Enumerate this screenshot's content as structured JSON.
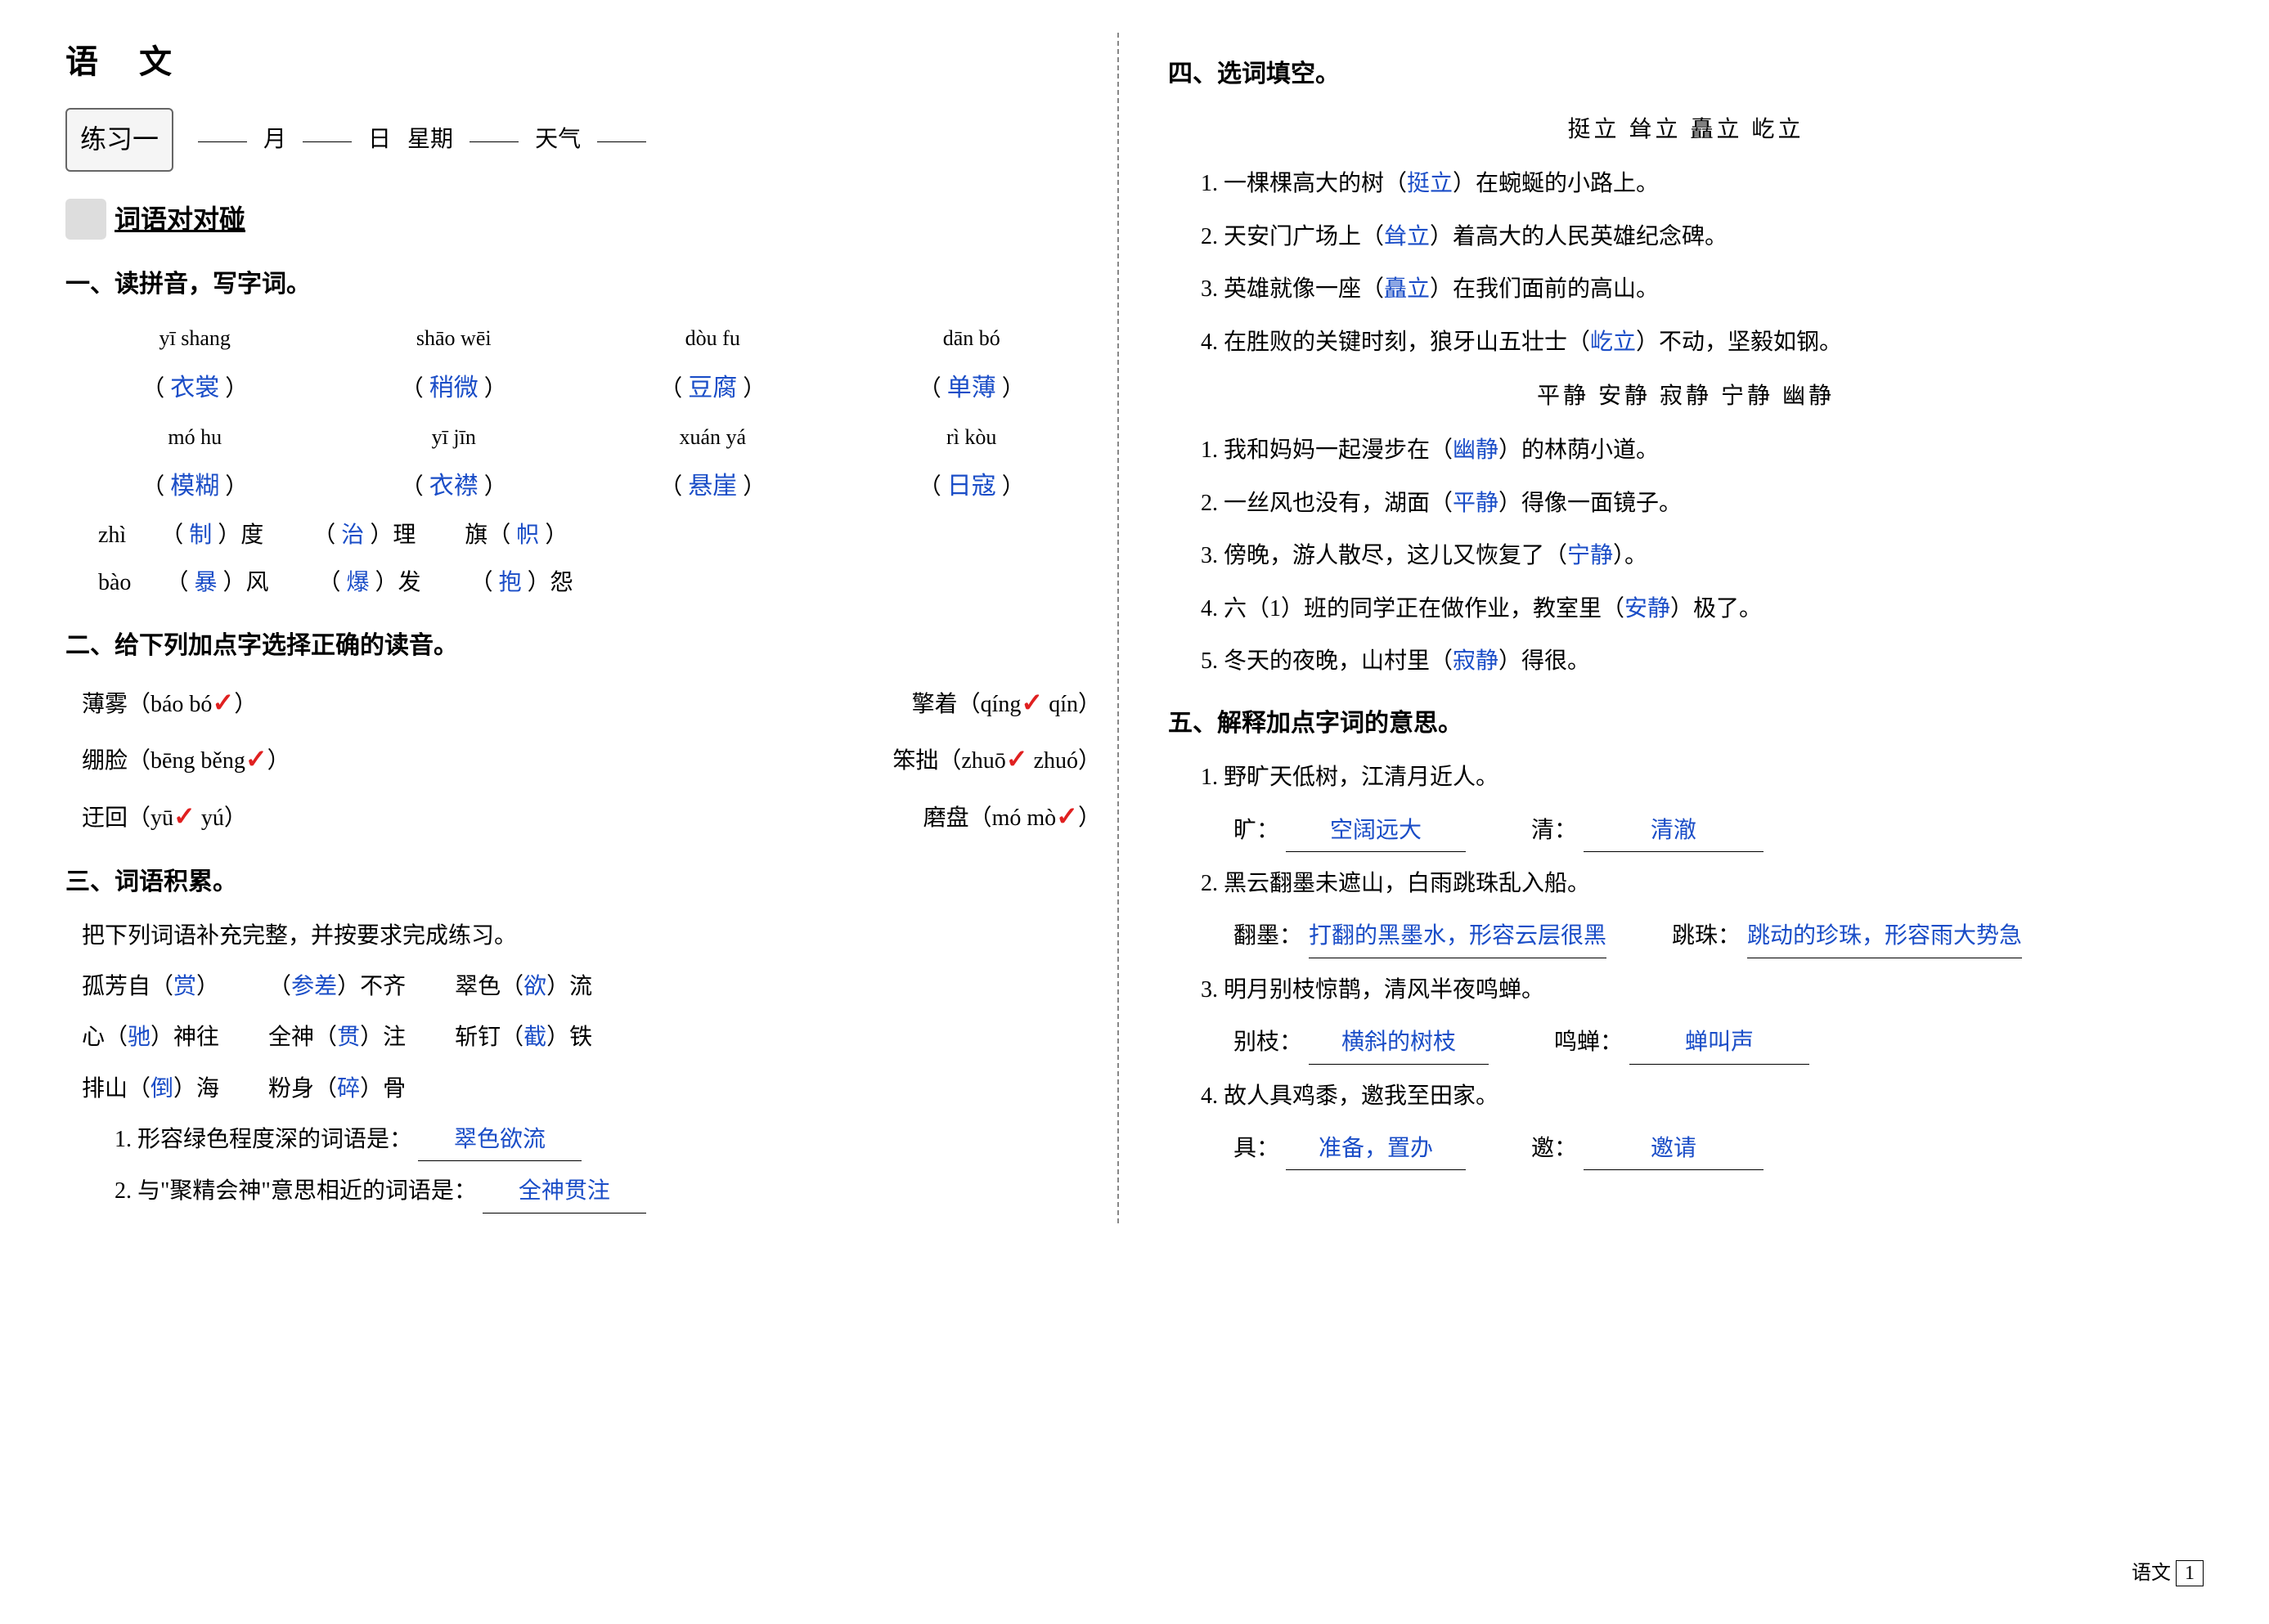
{
  "subject_title": "语 文",
  "practice_label": "练习一",
  "date": {
    "month_label": "月",
    "day_label": "日",
    "weekday_label": "星期",
    "weather_label": "天气"
  },
  "section_icon_title": "词语对对碰",
  "sec1": {
    "title": "一、读拼音，写字词。",
    "row1": {
      "p": [
        "yī shang",
        "shāo wēi",
        "dòu fu",
        "dān bó"
      ],
      "w": [
        "衣裳",
        "稍微",
        "豆腐",
        "单薄"
      ]
    },
    "row2": {
      "p": [
        "mó hu",
        "yī jīn",
        "xuán yá",
        "rì kòu"
      ],
      "w": [
        "模糊",
        "衣襟",
        "悬崖",
        "日寇"
      ]
    },
    "row3": [
      {
        "pinyin": "zhì",
        "ans": "制",
        "suffix": "度"
      },
      {
        "pinyin": "",
        "ans": "治",
        "suffix": "理"
      },
      {
        "pinyin": "",
        "prefix": "旗",
        "ans": "帜"
      }
    ],
    "row4": [
      {
        "pinyin": "bào",
        "ans": "暴",
        "suffix": "风"
      },
      {
        "pinyin": "",
        "ans": "爆",
        "suffix": "发"
      },
      {
        "pinyin": "",
        "ans": "抱",
        "suffix": "怨"
      }
    ]
  },
  "sec2": {
    "title": "二、给下列加点字选择正确的读音。",
    "items": [
      {
        "left_word": "薄雾",
        "left_opts": "（báo  bó）",
        "left_check": 2,
        "right_word": "擎着",
        "right_opts": "（qíng  qín）",
        "right_check": 1
      },
      {
        "left_word": "绷脸",
        "left_opts": "（bēng  běng）",
        "left_check": 2,
        "right_word": "笨拙",
        "right_opts": "（zhuō  zhuó）",
        "right_check": 1
      },
      {
        "left_word": "迂回",
        "left_opts": "（yū  yú）",
        "left_check": 1,
        "right_word": "磨盘",
        "right_opts": "（mó  mò）",
        "right_check": 2
      }
    ]
  },
  "sec3": {
    "title": "三、词语积累。",
    "instruction": "把下列词语补充完整，并按要求完成练习。",
    "lines": [
      [
        {
          "pre": "孤芳自（",
          "ans": "赏",
          "post": "）"
        },
        {
          "pre": "（",
          "ans": "参差",
          "post": "）不齐"
        },
        {
          "pre": "翠色（",
          "ans": "欲",
          "post": "）流"
        }
      ],
      [
        {
          "pre": "心（",
          "ans": "驰",
          "post": "）神往"
        },
        {
          "pre": "全神（",
          "ans": "贯",
          "post": "）注"
        },
        {
          "pre": "斩钉（",
          "ans": "截",
          "post": "）铁"
        }
      ],
      [
        {
          "pre": "排山（",
          "ans": "倒",
          "post": "）海"
        },
        {
          "pre": "粉身（",
          "ans": "碎",
          "post": "）骨"
        }
      ]
    ],
    "q1_label": "1. 形容绿色程度深的词语是：",
    "q1_ans": "翠色欲流",
    "q2_label": "2. 与\"聚精会神\"意思相近的词语是：",
    "q2_ans": "全神贯注"
  },
  "sec4": {
    "title": "四、选词填空。",
    "wordbank1": "挺立    耸立    矗立    屹立",
    "items1": [
      {
        "pre": "1. 一棵棵高大的树（",
        "ans": "挺立",
        "post": "）在蜿蜒的小路上。"
      },
      {
        "pre": "2. 天安门广场上（",
        "ans": "耸立",
        "post": "）着高大的人民英雄纪念碑。"
      },
      {
        "pre": "3. 英雄就像一座（",
        "ans": "矗立",
        "post": "）在我们面前的高山。"
      },
      {
        "pre": "4. 在胜败的关键时刻，狼牙山五壮士（",
        "ans": "屹立",
        "post": "）不动，坚毅如钢。"
      }
    ],
    "wordbank2": "平静    安静    寂静    宁静    幽静",
    "items2": [
      {
        "pre": "1. 我和妈妈一起漫步在（",
        "ans": "幽静",
        "post": "）的林荫小道。"
      },
      {
        "pre": "2. 一丝风也没有，湖面（",
        "ans": "平静",
        "post": "）得像一面镜子。"
      },
      {
        "pre": "3. 傍晚，游人散尽，这儿又恢复了（",
        "ans": "宁静",
        "post": "）。"
      },
      {
        "pre": "4. 六（1）班的同学正在做作业，教室里（",
        "ans": "安静",
        "post": "）极了。"
      },
      {
        "pre": "5. 冬天的夜晚，山村里（",
        "ans": "寂静",
        "post": "）得很。"
      }
    ]
  },
  "sec5": {
    "title": "五、解释加点字词的意思。",
    "items": [
      {
        "num": "1.",
        "poem": "野旷天低树，江清月近人。",
        "a": [
          {
            "lbl": "旷：",
            "ans": "空阔远大"
          },
          {
            "lbl": "清：",
            "ans": "清澈"
          }
        ]
      },
      {
        "num": "2.",
        "poem": "黑云翻墨未遮山，白雨跳珠乱入船。",
        "a": [
          {
            "lbl": "翻墨：",
            "ans": "打翻的黑墨水，形容云层很黑"
          },
          {
            "lbl": "跳珠：",
            "ans": "跳动的珍珠，形容雨大势急"
          }
        ]
      },
      {
        "num": "3.",
        "poem": "明月别枝惊鹊，清风半夜鸣蝉。",
        "a": [
          {
            "lbl": "别枝：",
            "ans": "横斜的树枝"
          },
          {
            "lbl": "鸣蝉：",
            "ans": "蝉叫声"
          }
        ]
      },
      {
        "num": "4.",
        "poem": "故人具鸡黍，邀我至田家。",
        "a": [
          {
            "lbl": "具：",
            "ans": "准备，置办"
          },
          {
            "lbl": "邀：",
            "ans": "邀请"
          }
        ]
      }
    ]
  },
  "footer": {
    "subject": "语文",
    "page": "1"
  },
  "colors": {
    "answer": "#1a4dc7",
    "check": "#e02020",
    "text": "#000000",
    "bg": "#ffffff"
  }
}
